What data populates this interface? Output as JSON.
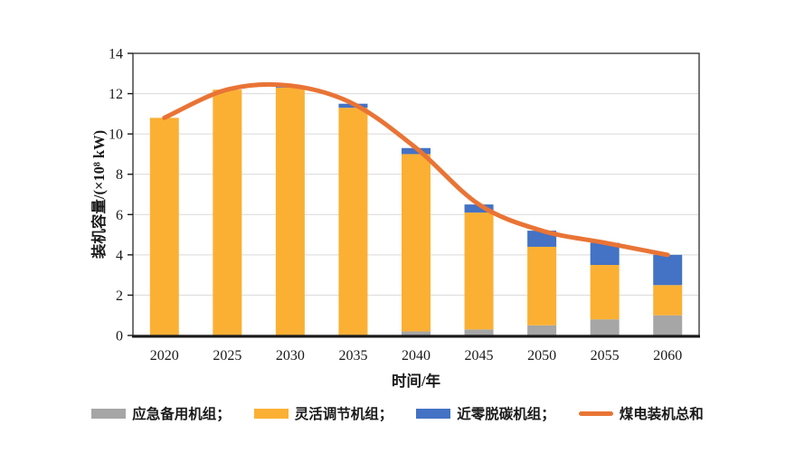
{
  "chart_data": {
    "type": "bar",
    "subtype": "stacked-bars-with-line",
    "title": "",
    "xlabel": "时间/年",
    "ylabel": "装机容量/(×10⁸ kW)",
    "ylim": [
      0,
      14
    ],
    "ytick_step": 2,
    "y_ticks": [
      "0",
      "2",
      "4",
      "6",
      "8",
      "10",
      "12",
      "14"
    ],
    "grid": true,
    "legend_position": "bottom",
    "categories": [
      "2020",
      "2025",
      "2030",
      "2035",
      "2040",
      "2045",
      "2050",
      "2055",
      "2060"
    ],
    "series": [
      {
        "name": "应急备用机组",
        "type": "bar",
        "color": "#A6A6A6",
        "values": [
          0,
          0,
          0,
          0,
          0.2,
          0.3,
          0.5,
          0.8,
          1.0
        ]
      },
      {
        "name": "灵活调节机组",
        "type": "bar",
        "color": "#FBB034",
        "values": [
          10.8,
          12.2,
          12.3,
          11.3,
          8.8,
          5.8,
          3.9,
          2.7,
          1.5
        ]
      },
      {
        "name": "近零脱碳机组",
        "type": "bar",
        "color": "#4472C4",
        "values": [
          0,
          0,
          0.1,
          0.2,
          0.3,
          0.4,
          0.8,
          1.1,
          1.5
        ]
      },
      {
        "name": "煤电装机总和",
        "type": "line",
        "color": "#E97435",
        "values": [
          10.8,
          12.2,
          12.4,
          11.5,
          9.3,
          6.5,
          5.2,
          4.6,
          4.0
        ]
      }
    ]
  },
  "legend": {
    "items": [
      {
        "label": "应急备用机组；",
        "swatch": "rect",
        "series": 0
      },
      {
        "label": "灵活调节机组；",
        "swatch": "rect",
        "series": 1
      },
      {
        "label": "近零脱碳机组；",
        "swatch": "rect",
        "series": 2
      },
      {
        "label": "煤电装机总和",
        "swatch": "line",
        "series": 3
      }
    ]
  },
  "colors": {
    "grid": "#D9D9D9",
    "border": "#3a3a3a",
    "axis": "#1a1a1a",
    "text": "#1a1a1a",
    "background": "#ffffff"
  }
}
